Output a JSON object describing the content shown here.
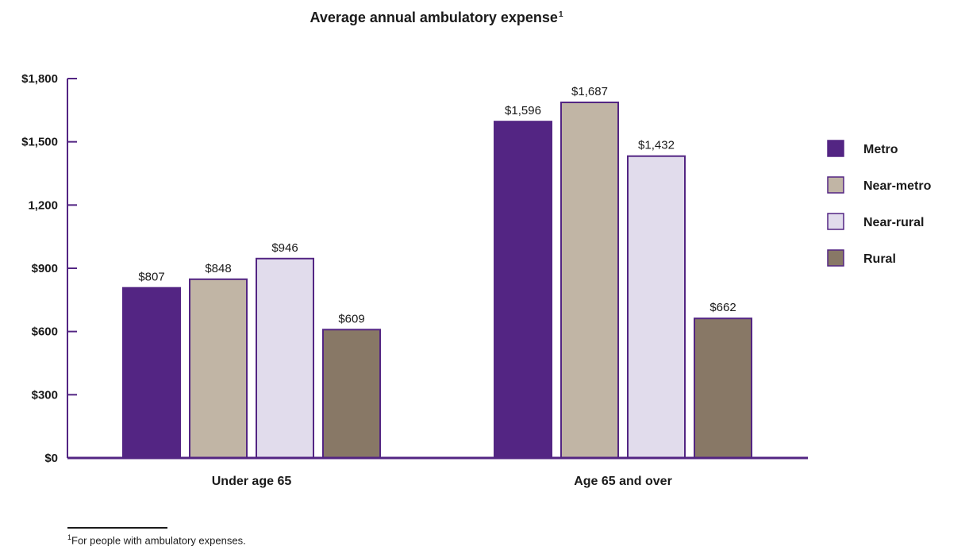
{
  "chart_data": {
    "type": "bar",
    "title": "Average annual ambulatory expense",
    "title_footnote_mark": "1",
    "categories": [
      "Under age 65",
      "Age 65 and over"
    ],
    "series": [
      {
        "name": "Metro",
        "color": "#532583",
        "values": [
          807,
          1596
        ],
        "labels": [
          "$807",
          "$1,596"
        ]
      },
      {
        "name": "Near-metro",
        "color": "#c1b5a5",
        "values": [
          848,
          1687
        ],
        "labels": [
          "$848",
          "$1,687"
        ]
      },
      {
        "name": "Near-rural",
        "color": "#e1dcec",
        "values": [
          946,
          1432
        ],
        "labels": [
          "$946",
          "$1,432"
        ]
      },
      {
        "name": "Rural",
        "color": "#887866",
        "values": [
          609,
          662
        ],
        "labels": [
          "$609",
          "$662"
        ]
      }
    ],
    "ylim": [
      0,
      1800
    ],
    "yticks": [
      0,
      300,
      600,
      900,
      1200,
      1500,
      1800
    ],
    "ytick_labels": [
      "$0",
      "$300",
      "$600",
      "$900",
      "1,200",
      "$1,500",
      "$1,800"
    ],
    "xlabel": "",
    "ylabel": "",
    "legend_position": "right",
    "grid": false,
    "axis_color": "#532583",
    "bar_outline_color": "#532583"
  },
  "footnote": {
    "mark": "1",
    "text": "For people with ambulatory expenses."
  }
}
